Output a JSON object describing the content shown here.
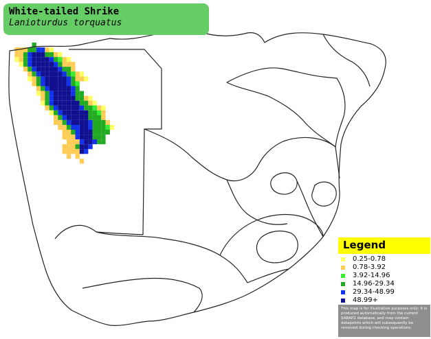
{
  "title": {
    "common_name": "White-tailed Shrike",
    "scientific_name": "Lanioturdus torquatus",
    "box_color": "#66cc66"
  },
  "legend": {
    "title": "Legend",
    "header_color": "#ffff00",
    "items": [
      {
        "label": "0.25-0.78",
        "color": "#ffff66"
      },
      {
        "label": "0.78-3.92",
        "color": "#ffcc55"
      },
      {
        "label": "3.92-14.96",
        "color": "#33ee33"
      },
      {
        "label": "14.96-29.34",
        "color": "#22aa22"
      },
      {
        "label": "29.34-48.99",
        "color": "#1133ee"
      },
      {
        "label": "48.99+",
        "color": "#101090"
      }
    ],
    "disclaimer": "This map is for illustrative purposes only; it is produced automatically from the current SABAP2 database, and may contain datapoints which will subsequently be removed during checking operations."
  }
}
